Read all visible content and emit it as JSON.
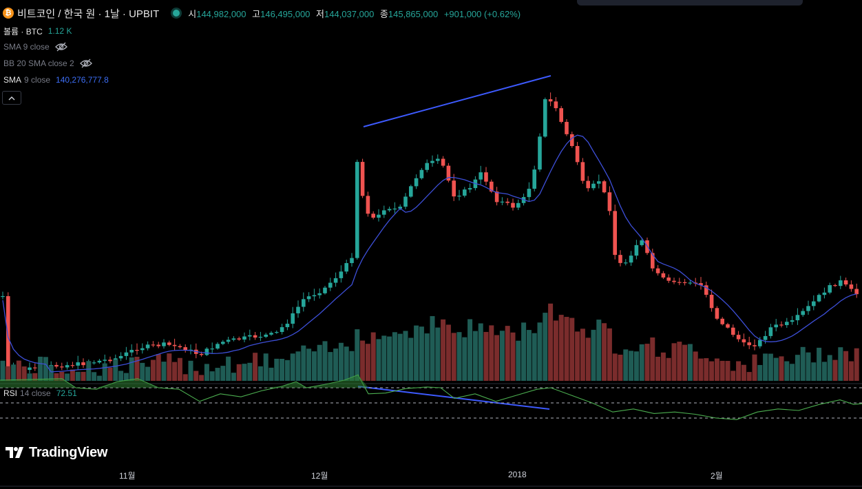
{
  "header": {
    "coin_icon": "bitcoin-icon",
    "symbol": "비트코인 / 한국 원 · 1날 · UPBIT",
    "status_dot": "market-status-dot",
    "open_label": "시",
    "open": "144,982,000",
    "high_label": "고",
    "high": "146,495,000",
    "low_label": "저",
    "low": "144,037,000",
    "close_label": "종",
    "close": "145,865,000",
    "change": "+901,000 (+0.62%)"
  },
  "legend": {
    "volume_label": "볼륨 · BTC",
    "volume_value": "1.12 K",
    "sma_hidden_label": "SMA 9 close",
    "bb_hidden_label": "BB 20 SMA close 2",
    "sma_label": "SMA",
    "sma_params": "9 close",
    "sma_value": "140,276,777.8",
    "collapse_icon": "chevron-up-icon"
  },
  "rsi": {
    "label": "RSI",
    "params": "14 close",
    "value": "72.51"
  },
  "logo": {
    "text": "TradingView"
  },
  "x_axis": {
    "labels": [
      "11월",
      "12월",
      "2018",
      "2월"
    ]
  },
  "colors": {
    "up": "#26a69a",
    "down": "#ef5350",
    "sma_line": "#3d4fd8",
    "trendline": "#3d5afe",
    "rsi_line": "#4caf50",
    "rsi_fill": "#2e7d32"
  },
  "chart_data": {
    "type": "candlestick",
    "rsi_levels": [
      70,
      50,
      30
    ]
  }
}
